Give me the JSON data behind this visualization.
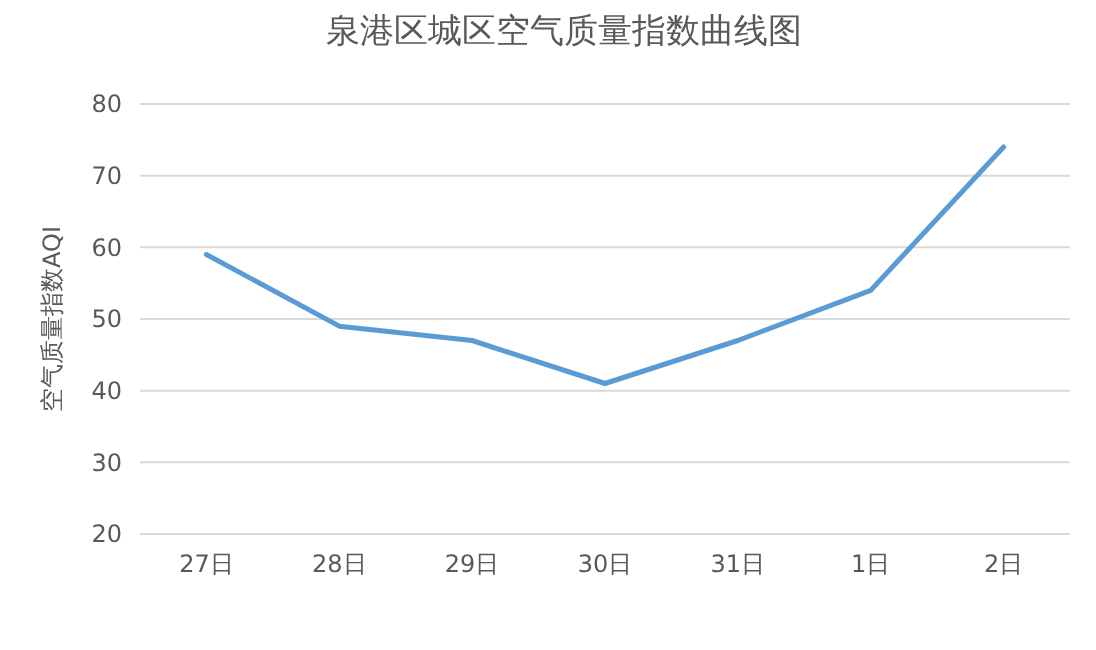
{
  "chart_data": {
    "type": "line",
    "title": "泉港区城区空气质量指数曲线图",
    "ylabel": "空气质量指数AQI",
    "categories": [
      "27日",
      "28日",
      "29日",
      "30日",
      "31日",
      "1日",
      "2日"
    ],
    "series": [
      {
        "color": "#5b9bd5",
        "values": [
          59,
          49,
          47,
          41,
          47,
          54,
          74
        ]
      }
    ],
    "ylim": [
      20,
      80
    ],
    "yticks": [
      20,
      30,
      40,
      50,
      60,
      70,
      80
    ],
    "grid": "y",
    "marker": "none",
    "line_style": "solid"
  }
}
